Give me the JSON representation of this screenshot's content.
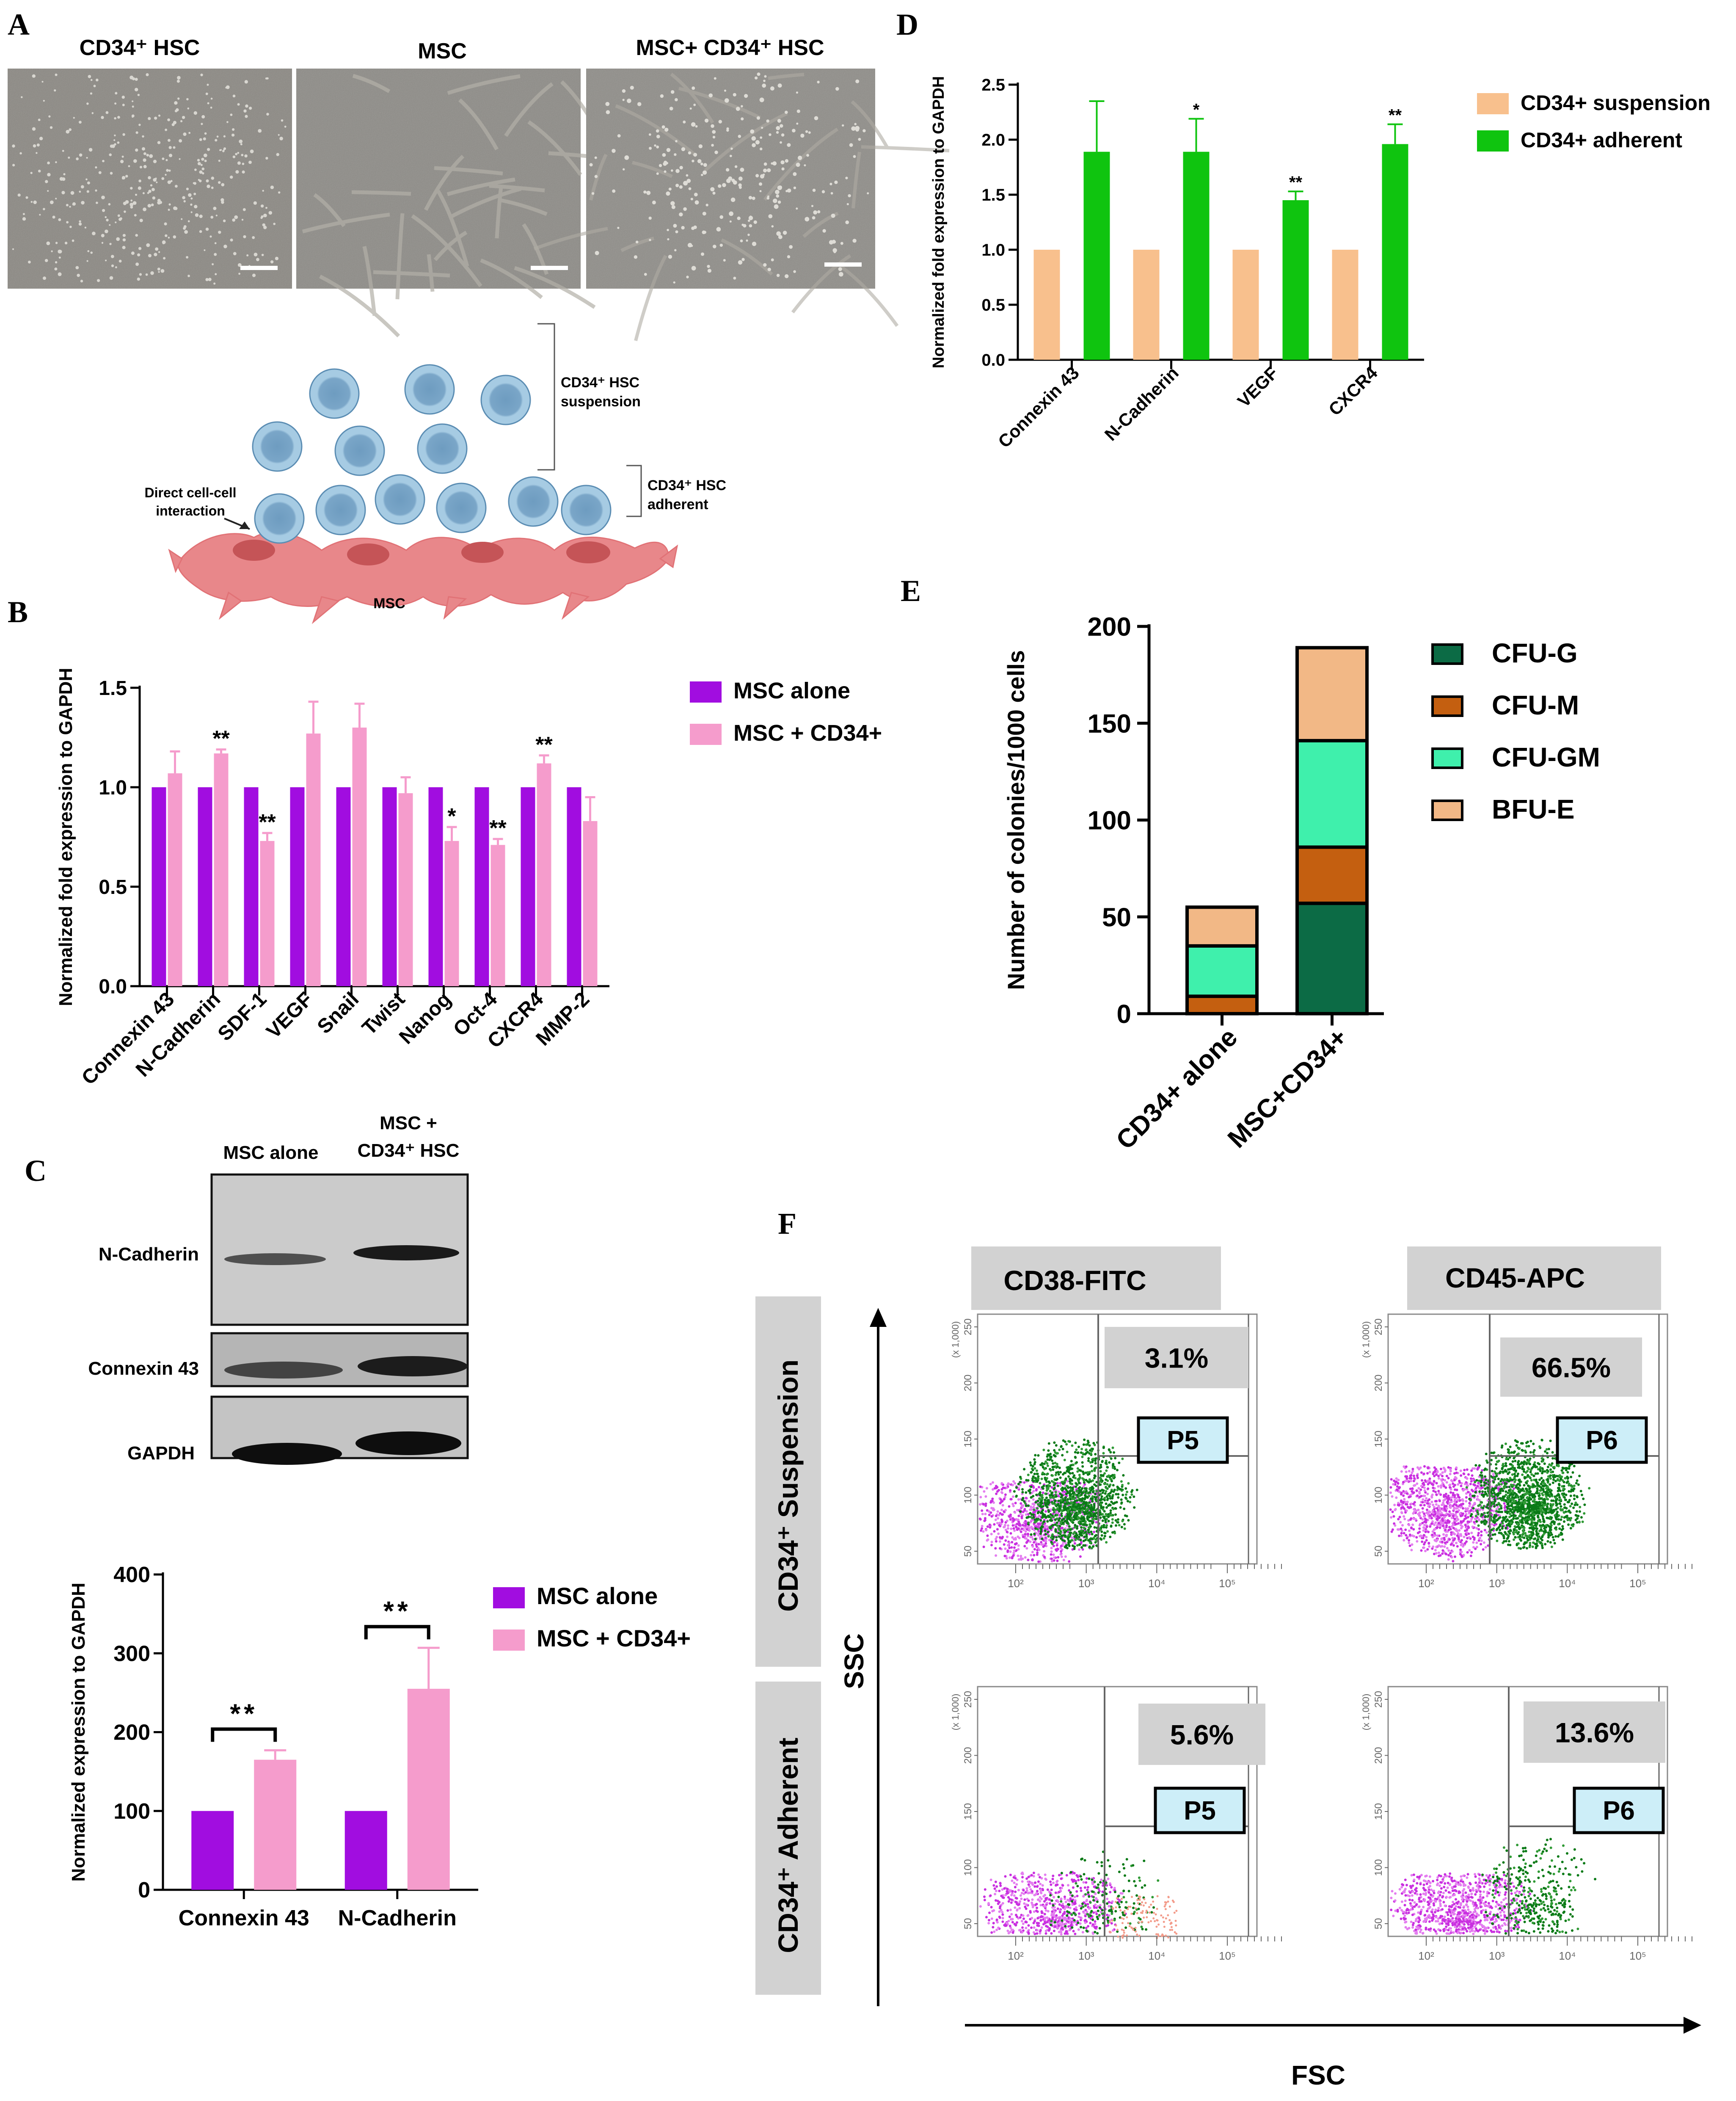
{
  "figure": {
    "panels": {
      "A": {
        "letter": "A",
        "images": [
          {
            "label": "CD34⁺ HSC"
          },
          {
            "label": "MSC"
          },
          {
            "label": "MSC+ CD34⁺ HSC"
          }
        ],
        "diagram": {
          "suspension_label_1": "CD34⁺ HSC",
          "suspension_label_2": "suspension",
          "adherent_label_1": "CD34⁺ HSC",
          "adherent_label_2": "adherent",
          "interaction_label_1": "Direct cell-cell",
          "interaction_label_2": "interaction",
          "msc_label": "MSC"
        }
      },
      "B": {
        "letter": "B"
      },
      "C": {
        "letter": "C",
        "blot": {
          "col1": "MSC alone",
          "col2_line1": "MSC +",
          "col2_line2": "CD34⁺ HSC",
          "rows": [
            "N-Cadherin",
            "Connexin 43",
            "GAPDH"
          ]
        }
      },
      "D": {
        "letter": "D"
      },
      "E": {
        "letter": "E"
      },
      "F": {
        "letter": "F",
        "col_headers": [
          "CD38-FITC",
          "CD45-APC"
        ],
        "row_headers": [
          "CD34⁺ Suspension",
          "CD34⁺ Adherent"
        ],
        "plots": [
          {
            "percent": "3.1%",
            "gate": "P5"
          },
          {
            "percent": "66.5%",
            "gate": "P6"
          },
          {
            "percent": "5.6%",
            "gate": "P5"
          },
          {
            "percent": "13.6%",
            "gate": "P6"
          }
        ],
        "y_axis": "SSC",
        "x_axis": "FSC",
        "y_scale_label": "(x 1,000)",
        "y_ticks": [
          "250",
          "200",
          "150",
          "100",
          "50"
        ],
        "x_ticks": [
          "10²",
          "10³",
          "10⁴",
          "10⁵"
        ]
      }
    }
  },
  "colors": {
    "purple": "#a10de0",
    "pink": "#f59ccc",
    "peach": "#f8c08d",
    "green": "#0fc40f",
    "cfu_g": "#0c6b45",
    "cfu_m": "#c45f10",
    "cfu_gm": "#3ff0ac",
    "bfu_e": "#f2b886",
    "cell_blue": "#9dc3dd",
    "msc_red": "#e8878a"
  },
  "chart_data": [
    {
      "id": "B",
      "type": "bar",
      "title": "",
      "xlabel": "",
      "ylabel": "Normalized fold expression to GAPDH",
      "ylim": [
        0,
        1.5
      ],
      "y_ticks": [
        0.0,
        0.5,
        1.0,
        1.5
      ],
      "y_tick_labels": [
        "0.0",
        "0.5",
        "1.0",
        "1.5"
      ],
      "categories": [
        "Connexin 43",
        "N-Cadherin",
        "SDF-1",
        "VEGF",
        "Snail",
        "Twist",
        "Nanog",
        "Oct-4",
        "CXCR4",
        "MMP-2"
      ],
      "series": [
        {
          "name": "MSC alone",
          "values": [
            1.0,
            1.0,
            1.0,
            1.0,
            1.0,
            1.0,
            1.0,
            1.0,
            1.0,
            1.0
          ]
        },
        {
          "name": "MSC + CD34+",
          "values": [
            1.07,
            1.17,
            0.73,
            1.27,
            1.3,
            0.97,
            0.73,
            0.71,
            1.12,
            0.83
          ],
          "errors": [
            0.11,
            0.02,
            0.04,
            0.16,
            0.12,
            0.08,
            0.07,
            0.03,
            0.04,
            0.12
          ]
        }
      ],
      "significance": [
        "",
        "**",
        "**",
        "",
        "",
        "",
        "*",
        "**",
        "**",
        ""
      ],
      "legend": "top-right"
    },
    {
      "id": "C",
      "type": "bar",
      "title": "",
      "xlabel": "",
      "ylabel": "Normalized expression to GAPDH",
      "ylim": [
        0,
        400
      ],
      "y_ticks": [
        0,
        100,
        200,
        300,
        400
      ],
      "y_tick_labels": [
        "0",
        "100",
        "200",
        "300",
        "400"
      ],
      "categories": [
        "Connexin 43",
        "N-Cadherin"
      ],
      "series": [
        {
          "name": "MSC alone",
          "values": [
            100,
            100
          ]
        },
        {
          "name": "MSC + CD34+",
          "values": [
            165,
            255
          ],
          "errors": [
            12,
            52
          ]
        }
      ],
      "significance": [
        "**",
        "**"
      ],
      "legend": "top-right"
    },
    {
      "id": "D",
      "type": "bar",
      "title": "",
      "xlabel": "",
      "ylabel": "Normalized fold expression to GAPDH",
      "ylim": [
        0,
        2.5
      ],
      "y_ticks": [
        0.0,
        0.5,
        1.0,
        1.5,
        2.0,
        2.5
      ],
      "y_tick_labels": [
        "0.0",
        "0.5",
        "1.0",
        "1.5",
        "2.0",
        "2.5"
      ],
      "categories": [
        "Connexin 43",
        "N-Cadherin",
        "VEGF",
        "CXCR4"
      ],
      "series": [
        {
          "name": "CD34+ suspension",
          "values": [
            1.0,
            1.0,
            1.0,
            1.0
          ]
        },
        {
          "name": "CD34+ adherent",
          "values": [
            1.89,
            1.89,
            1.45,
            1.96
          ],
          "errors": [
            0.46,
            0.3,
            0.08,
            0.18
          ]
        }
      ],
      "significance": [
        "",
        "*",
        "**",
        "**"
      ],
      "legend": "top-right"
    },
    {
      "id": "E",
      "type": "bar",
      "stacked": true,
      "title": "",
      "xlabel": "",
      "ylabel": "Number of colonies/1000 cells",
      "ylim": [
        0,
        200
      ],
      "y_ticks": [
        0,
        50,
        100,
        150,
        200
      ],
      "y_tick_labels": [
        "0",
        "50",
        "100",
        "150",
        "200"
      ],
      "categories": [
        "CD34+ alone",
        "MSC+CD34+"
      ],
      "series": [
        {
          "name": "CFU-G",
          "values": [
            0,
            57
          ]
        },
        {
          "name": "CFU-M",
          "values": [
            9,
            29
          ]
        },
        {
          "name": "CFU-GM",
          "values": [
            26,
            55
          ]
        },
        {
          "name": "BFU-E",
          "values": [
            20,
            48
          ]
        }
      ],
      "legend": "top-right"
    }
  ]
}
